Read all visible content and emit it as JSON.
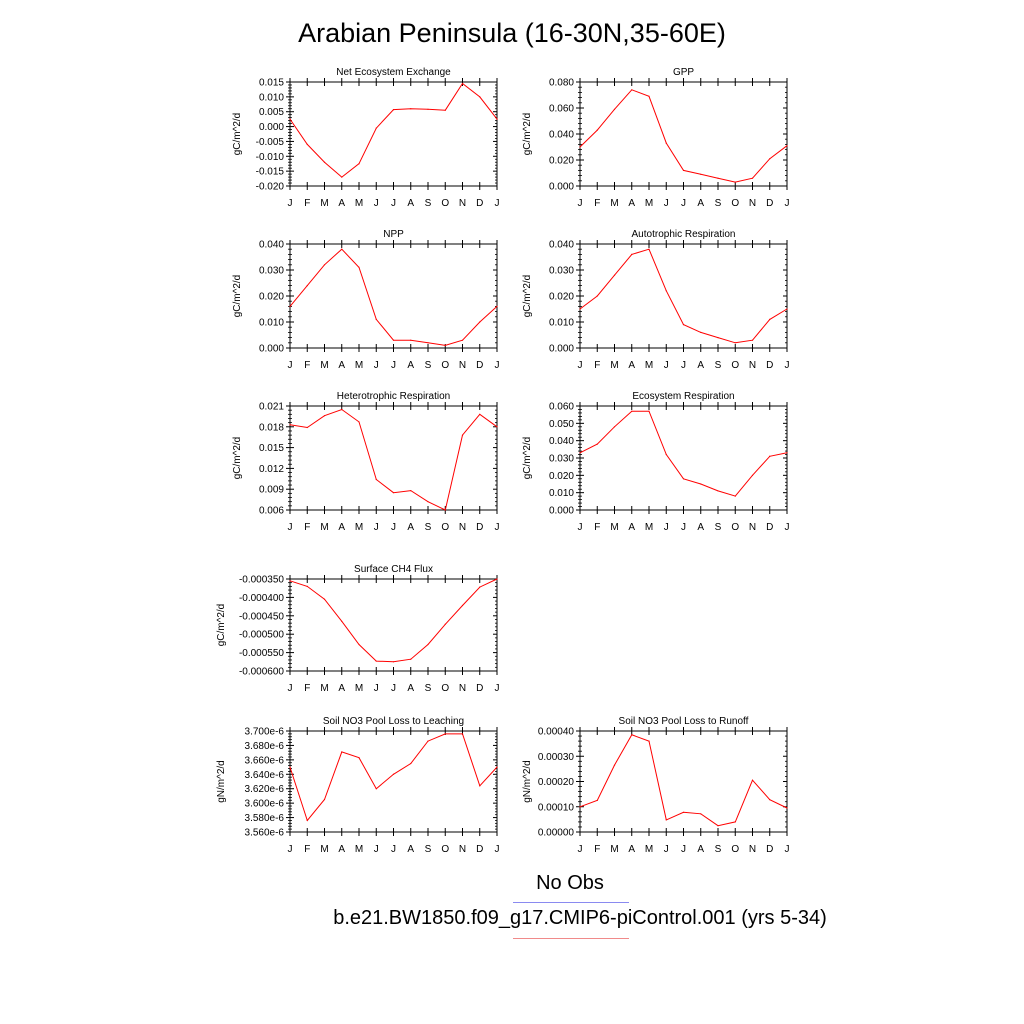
{
  "title": "Arabian Peninsula (16-30N,35-60E)",
  "legend": {
    "obs_label": "No Obs",
    "obs_color": "#8080ff",
    "run_label": "b.e21.BW1850.f09_g17.CMIP6-piControl.001 (yrs 5-34)",
    "run_color": "#ff0000"
  },
  "chart_data": [
    {
      "type": "line",
      "title": "Net Ecosystem Exchange",
      "ylabel": "gC/m^2/d",
      "categories": [
        "J",
        "F",
        "M",
        "A",
        "M",
        "J",
        "J",
        "A",
        "S",
        "O",
        "N",
        "D",
        "J"
      ],
      "values": [
        0.0025,
        -0.006,
        -0.012,
        -0.017,
        -0.0125,
        -0.0005,
        0.0057,
        0.006,
        0.0058,
        0.0055,
        0.0145,
        0.01,
        0.0025
      ],
      "yticks": [
        "0.015",
        "0.010",
        "0.005",
        "0.000",
        "-0.005",
        "-0.010",
        "-0.015",
        "-0.020"
      ],
      "ylim": [
        -0.02,
        0.015
      ],
      "color": "#ff0000"
    },
    {
      "type": "line",
      "title": "GPP",
      "ylabel": "gC/m^2/d",
      "categories": [
        "J",
        "F",
        "M",
        "A",
        "M",
        "J",
        "J",
        "A",
        "S",
        "O",
        "N",
        "D",
        "J"
      ],
      "values": [
        0.03,
        0.043,
        0.059,
        0.074,
        0.069,
        0.033,
        0.012,
        0.009,
        0.006,
        0.003,
        0.006,
        0.021,
        0.031
      ],
      "yticks": [
        "0.080",
        "0.060",
        "0.040",
        "0.020",
        "0.000"
      ],
      "ylim": [
        0.0,
        0.08
      ],
      "color": "#ff0000"
    },
    {
      "type": "line",
      "title": "NPP",
      "ylabel": "gC/m^2/d",
      "categories": [
        "J",
        "F",
        "M",
        "A",
        "M",
        "J",
        "J",
        "A",
        "S",
        "O",
        "N",
        "D",
        "J"
      ],
      "values": [
        0.016,
        0.024,
        0.032,
        0.038,
        0.031,
        0.011,
        0.003,
        0.003,
        0.002,
        0.001,
        0.003,
        0.01,
        0.016
      ],
      "yticks": [
        "0.040",
        "0.030",
        "0.020",
        "0.010",
        "0.000"
      ],
      "ylim": [
        0.0,
        0.04
      ],
      "color": "#ff0000"
    },
    {
      "type": "line",
      "title": "Autotrophic Respiration",
      "ylabel": "gC/m^2/d",
      "categories": [
        "J",
        "F",
        "M",
        "A",
        "M",
        "J",
        "J",
        "A",
        "S",
        "O",
        "N",
        "D",
        "J"
      ],
      "values": [
        0.015,
        0.02,
        0.028,
        0.036,
        0.038,
        0.022,
        0.009,
        0.006,
        0.004,
        0.002,
        0.003,
        0.011,
        0.015
      ],
      "yticks": [
        "0.040",
        "0.030",
        "0.020",
        "0.010",
        "0.000"
      ],
      "ylim": [
        0.0,
        0.04
      ],
      "color": "#ff0000"
    },
    {
      "type": "line",
      "title": "Heterotrophic Respiration",
      "ylabel": "gC/m^2/d",
      "categories": [
        "J",
        "F",
        "M",
        "A",
        "M",
        "J",
        "J",
        "A",
        "S",
        "O",
        "N",
        "D",
        "J"
      ],
      "values": [
        0.0183,
        0.0179,
        0.0196,
        0.0205,
        0.0187,
        0.0104,
        0.0085,
        0.0088,
        0.0072,
        0.006,
        0.0168,
        0.0198,
        0.018
      ],
      "yticks": [
        "0.021",
        "0.018",
        "0.015",
        "0.012",
        "0.009",
        "0.006"
      ],
      "ylim": [
        0.006,
        0.021
      ],
      "color": "#ff0000"
    },
    {
      "type": "line",
      "title": "Ecosystem Respiration",
      "ylabel": "gC/m^2/d",
      "categories": [
        "J",
        "F",
        "M",
        "A",
        "M",
        "J",
        "J",
        "A",
        "S",
        "O",
        "N",
        "D",
        "J"
      ],
      "values": [
        0.033,
        0.038,
        0.048,
        0.057,
        0.057,
        0.032,
        0.018,
        0.015,
        0.011,
        0.008,
        0.02,
        0.031,
        0.033
      ],
      "yticks": [
        "0.060",
        "0.050",
        "0.040",
        "0.030",
        "0.020",
        "0.010",
        "0.000"
      ],
      "ylim": [
        0.0,
        0.06
      ],
      "color": "#ff0000"
    },
    {
      "type": "line",
      "title": "Surface CH4 Flux",
      "ylabel": "gC/m^2/d",
      "categories": [
        "J",
        "F",
        "M",
        "A",
        "M",
        "J",
        "J",
        "A",
        "S",
        "O",
        "N",
        "D",
        "J"
      ],
      "values": [
        -0.000355,
        -0.00037,
        -0.000405,
        -0.000465,
        -0.000528,
        -0.000573,
        -0.000575,
        -0.000568,
        -0.000528,
        -0.000473,
        -0.000422,
        -0.000372,
        -0.00035
      ],
      "yticks": [
        "-0.000350",
        "-0.000400",
        "-0.000450",
        "-0.000500",
        "-0.000550",
        "-0.000600"
      ],
      "ylim": [
        -0.0006,
        -0.00035
      ],
      "color": "#ff0000"
    },
    {
      "type": "line",
      "title": "Soil NO3 Pool Loss to Leaching",
      "ylabel": "gN/m^2/d",
      "categories": [
        "J",
        "F",
        "M",
        "A",
        "M",
        "J",
        "J",
        "A",
        "S",
        "O",
        "N",
        "D",
        "J"
      ],
      "values": [
        3.65e-06,
        3.576e-06,
        3.605e-06,
        3.671e-06,
        3.663e-06,
        3.62e-06,
        3.64e-06,
        3.655e-06,
        3.686e-06,
        3.696e-06,
        3.696e-06,
        3.624e-06,
        3.65e-06
      ],
      "yticks": [
        "3.700e-6",
        "3.680e-6",
        "3.660e-6",
        "3.640e-6",
        "3.620e-6",
        "3.600e-6",
        "3.580e-6",
        "3.560e-6"
      ],
      "ylim": [
        3.56e-06,
        3.7e-06
      ],
      "color": "#ff0000"
    },
    {
      "type": "line",
      "title": "Soil NO3 Pool Loss to Runoff",
      "ylabel": "gN/m^2/d",
      "categories": [
        "J",
        "F",
        "M",
        "A",
        "M",
        "J",
        "J",
        "A",
        "S",
        "O",
        "N",
        "D",
        "J"
      ],
      "values": [
        0.0001,
        0.000125,
        0.000265,
        0.000385,
        0.00036,
        4.8e-05,
        7.8e-05,
        7.2e-05,
        2.5e-05,
        4e-05,
        0.000205,
        0.000128,
        9.5e-05
      ],
      "yticks": [
        "0.00040",
        "0.00030",
        "0.00020",
        "0.00010",
        "0.00000"
      ],
      "ylim": [
        0.0,
        0.0004
      ],
      "color": "#ff0000"
    }
  ]
}
